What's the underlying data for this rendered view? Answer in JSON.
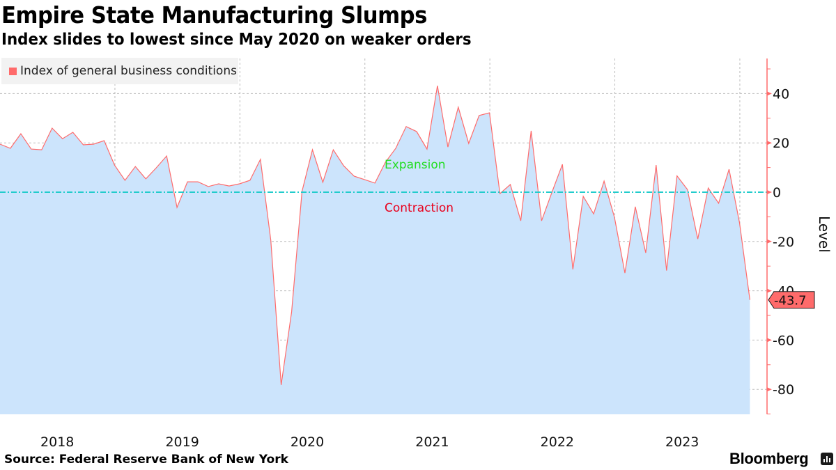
{
  "header": {
    "title": "Empire State Manufacturing Slumps",
    "subtitle": "Index slides to lowest since May 2020 on weaker orders"
  },
  "footer": {
    "source": "Source: Federal Reserve Bank of New York",
    "brand": "Bloomberg"
  },
  "colors": {
    "line": "#ff6b6b",
    "fill": "#cce4fc",
    "zero_line": "#22cccc",
    "expansion": "#22dd22",
    "contraction": "#e8001c",
    "axis": "#ff6b6b",
    "label_bg": "#ff6b6b"
  },
  "chart_data": {
    "type": "area",
    "title": "Empire State Manufacturing Slumps",
    "subtitle": "Index slides to lowest since May 2020 on weaker orders",
    "xlabel": "",
    "ylabel": "Level",
    "ylim": [
      -90,
      55
    ],
    "yticks": [
      40,
      20,
      0,
      -20,
      -40,
      -60,
      -80
    ],
    "ytick_labels": [
      "40",
      "20",
      "0",
      "-20",
      "-40",
      "-60",
      "-80"
    ],
    "x_start": "2018-01",
    "x_end": "2024-01",
    "frequency": "monthly",
    "xtick_labels": [
      "2018",
      "2019",
      "2020",
      "2021",
      "2022",
      "2023"
    ],
    "grid": true,
    "legend": {
      "position": "top-left",
      "entries": [
        "Index of general business conditions"
      ]
    },
    "annotations": [
      {
        "text": "Expansion",
        "y": 11
      },
      {
        "text": "Contraction",
        "y": -6
      }
    ],
    "reference_line": {
      "y": 0,
      "style": "dash-dot"
    },
    "last_value_label": "-43.7",
    "series": [
      {
        "name": "Index of general business conditions",
        "values": [
          19.5,
          17.8,
          23.7,
          17.5,
          17.2,
          26.0,
          21.7,
          24.3,
          19.2,
          19.5,
          20.9,
          11.0,
          4.8,
          10.4,
          5.4,
          9.9,
          14.7,
          -6.2,
          4.2,
          4.2,
          2.3,
          3.4,
          2.5,
          3.4,
          4.8,
          13.3,
          -19.5,
          -78.2,
          -48.5,
          0.3,
          17.2,
          4.0,
          17.2,
          10.7,
          6.5,
          5.1,
          3.7,
          12.1,
          17.8,
          26.6,
          24.6,
          17.5,
          43.2,
          18.3,
          34.5,
          19.8,
          31.1,
          32.2,
          -0.6,
          3.1,
          -11.6,
          24.9,
          -11.6,
          0.0,
          11.3,
          -31.3,
          -1.7,
          -8.8,
          4.5,
          -10.2,
          -32.8,
          -5.9,
          -24.6,
          11.0,
          -31.8,
          6.6,
          1.1,
          -19.0,
          1.7,
          -4.5,
          9.3,
          -12.4,
          -43.7
        ]
      }
    ]
  }
}
